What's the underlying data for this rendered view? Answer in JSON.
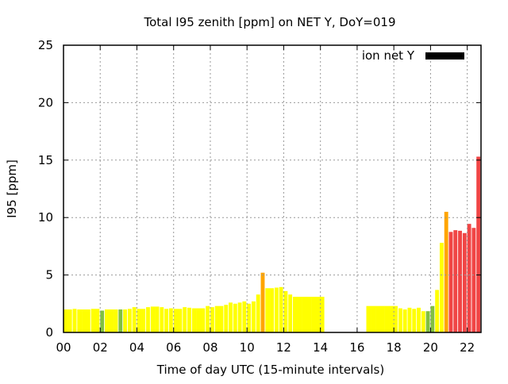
{
  "chart_data": {
    "type": "bar",
    "title": "Total I95 zenith [ppm] on NET Y, DoY=019",
    "xlabel": "Time of day UTC (15-minute intervals)",
    "ylabel": "I95 [ppm]",
    "xlim": [
      0,
      22.75
    ],
    "ylim": [
      0,
      25
    ],
    "grid": true,
    "legend": {
      "label": "ion net Y",
      "color": "#000000",
      "placement": "top-right"
    },
    "xticks": [
      "00",
      "02",
      "04",
      "06",
      "08",
      "10",
      "12",
      "14",
      "16",
      "18",
      "20",
      "22"
    ],
    "yticks": [
      "0",
      "5",
      "10",
      "15",
      "20",
      "25"
    ],
    "colors": {
      "g": "#80c040",
      "y": "#ffff00",
      "o": "#ffa500",
      "r": "#f04545"
    },
    "interval_hours": 0.25,
    "values": [
      2.0,
      2.0,
      2.05,
      2.0,
      2.0,
      2.0,
      2.05,
      2.05,
      1.9,
      2.0,
      2.0,
      2.0,
      2.0,
      2.0,
      2.05,
      2.2,
      2.05,
      2.05,
      2.2,
      2.25,
      2.25,
      2.2,
      2.05,
      2.1,
      2.05,
      2.05,
      2.2,
      2.15,
      2.1,
      2.1,
      2.1,
      2.3,
      2.2,
      2.3,
      2.3,
      2.4,
      2.6,
      2.5,
      2.6,
      2.7,
      2.5,
      2.7,
      3.3,
      5.2,
      3.85,
      3.85,
      3.9,
      3.95,
      3.6,
      3.3,
      3.1,
      3.1,
      3.1,
      3.1,
      3.1,
      3.1,
      3.1,
      null,
      null,
      null,
      null,
      null,
      null,
      null,
      null,
      null,
      2.3,
      2.3,
      2.3,
      2.3,
      2.3,
      2.3,
      2.3,
      2.1,
      2.0,
      2.15,
      2.05,
      2.15,
      1.85,
      1.85,
      2.3,
      3.7,
      7.8,
      10.5,
      8.75,
      8.9,
      8.85,
      8.65,
      9.45,
      9.1,
      15.3
    ],
    "classes": "yyyyyyyygyyygyyyyyyyyyyyyyyyyyyyyyyyyyyyyyyoyyyyyyyyyyyyy---------yyyyyyyyyyyyyggyyorrrrrrrr"
  }
}
